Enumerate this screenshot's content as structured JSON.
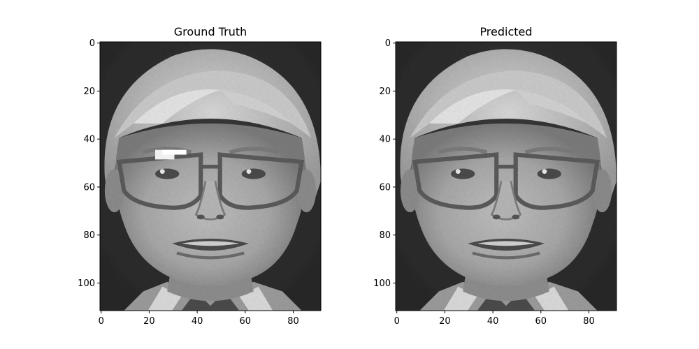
{
  "chart_data": [
    {
      "type": "image",
      "title": "Ground Truth",
      "xlim": [
        -0.5,
        91.5
      ],
      "ylim": [
        111.5,
        -0.5
      ],
      "xticks": [
        0,
        20,
        40,
        60,
        80
      ],
      "yticks": [
        0,
        20,
        40,
        60,
        80,
        100
      ],
      "xtick_labels": [
        "0",
        "20",
        "40",
        "60",
        "80"
      ],
      "ytick_labels": [
        "0",
        "20",
        "40",
        "60",
        "80",
        "100"
      ],
      "image_shape": [
        112,
        92
      ],
      "colormap": "gray",
      "grid": false
    },
    {
      "type": "image",
      "title": "Predicted",
      "xlim": [
        -0.5,
        91.5
      ],
      "ylim": [
        111.5,
        -0.5
      ],
      "xticks": [
        0,
        20,
        40,
        60,
        80
      ],
      "yticks": [
        0,
        20,
        40,
        60,
        80,
        100
      ],
      "xtick_labels": [
        "0",
        "20",
        "40",
        "60",
        "80"
      ],
      "ytick_labels": [
        "0",
        "20",
        "40",
        "60",
        "80",
        "100"
      ],
      "image_shape": [
        112,
        92
      ],
      "colormap": "gray",
      "grid": false
    }
  ]
}
